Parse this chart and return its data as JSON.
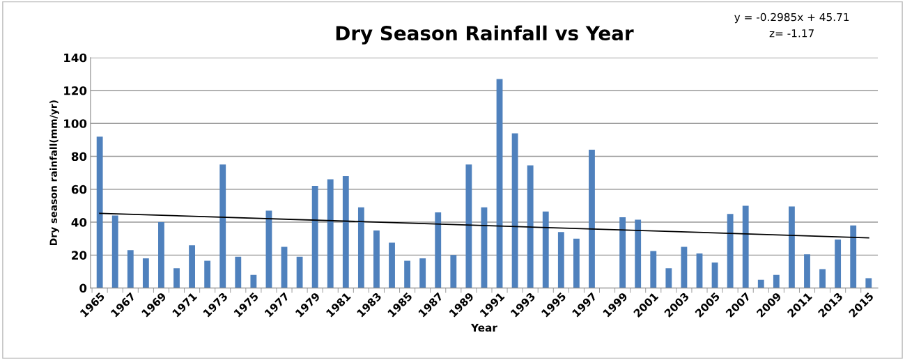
{
  "chart_data": {
    "type": "bar",
    "title": "Dry Season Rainfall vs Year",
    "xlabel": "Year",
    "ylabel": "Dry season rainfall(mm/yr)",
    "categories": [
      "1965",
      null,
      "1967",
      null,
      "1969",
      null,
      "1971",
      null,
      "1973",
      null,
      "1975",
      null,
      "1977",
      null,
      "1979",
      null,
      "1981",
      null,
      "1983",
      null,
      "1985",
      null,
      "1987",
      null,
      "1989",
      null,
      "1991",
      null,
      "1993",
      null,
      "1995",
      null,
      "1997",
      null,
      "1999",
      null,
      "2001",
      null,
      "2003",
      null,
      "2005",
      null,
      "2007",
      null,
      "2009",
      null,
      "2011",
      null,
      "2013",
      null,
      "2015"
    ],
    "series": [
      {
        "color": "#4f81bd",
        "values": [
          92,
          44,
          23,
          18,
          40,
          12,
          26,
          16.5,
          75,
          19,
          8,
          47,
          25,
          19,
          62,
          66,
          68,
          49,
          35,
          27.5,
          16.5,
          18,
          46,
          20,
          75,
          49,
          127,
          94,
          74.5,
          46.5,
          34,
          30,
          84,
          null,
          43,
          41.5,
          22.5,
          12,
          25,
          21,
          15.5,
          45,
          50,
          5,
          8,
          49.5,
          20.5,
          11.5,
          29.5,
          38,
          6
        ]
      },
      {
        "type": "line",
        "color": "#000000",
        "values": [
          45.4,
          null,
          null,
          null,
          null,
          null,
          null,
          null,
          null,
          null,
          null,
          null,
          null,
          null,
          null,
          null,
          null,
          null,
          null,
          null,
          null,
          null,
          null,
          null,
          null,
          null,
          null,
          null,
          null,
          null,
          null,
          null,
          null,
          null,
          null,
          null,
          null,
          null,
          null,
          null,
          null,
          null,
          null,
          null,
          null,
          null,
          null,
          null,
          null,
          null,
          30.5
        ]
      }
    ],
    "ylim": [
      0,
      140
    ],
    "yticks": [
      0,
      20,
      40,
      60,
      80,
      100,
      120,
      140
    ],
    "grid": "y",
    "legend": false,
    "annotations": [
      "y = -0.2985x + 45.71",
      "z= -1.17"
    ]
  }
}
